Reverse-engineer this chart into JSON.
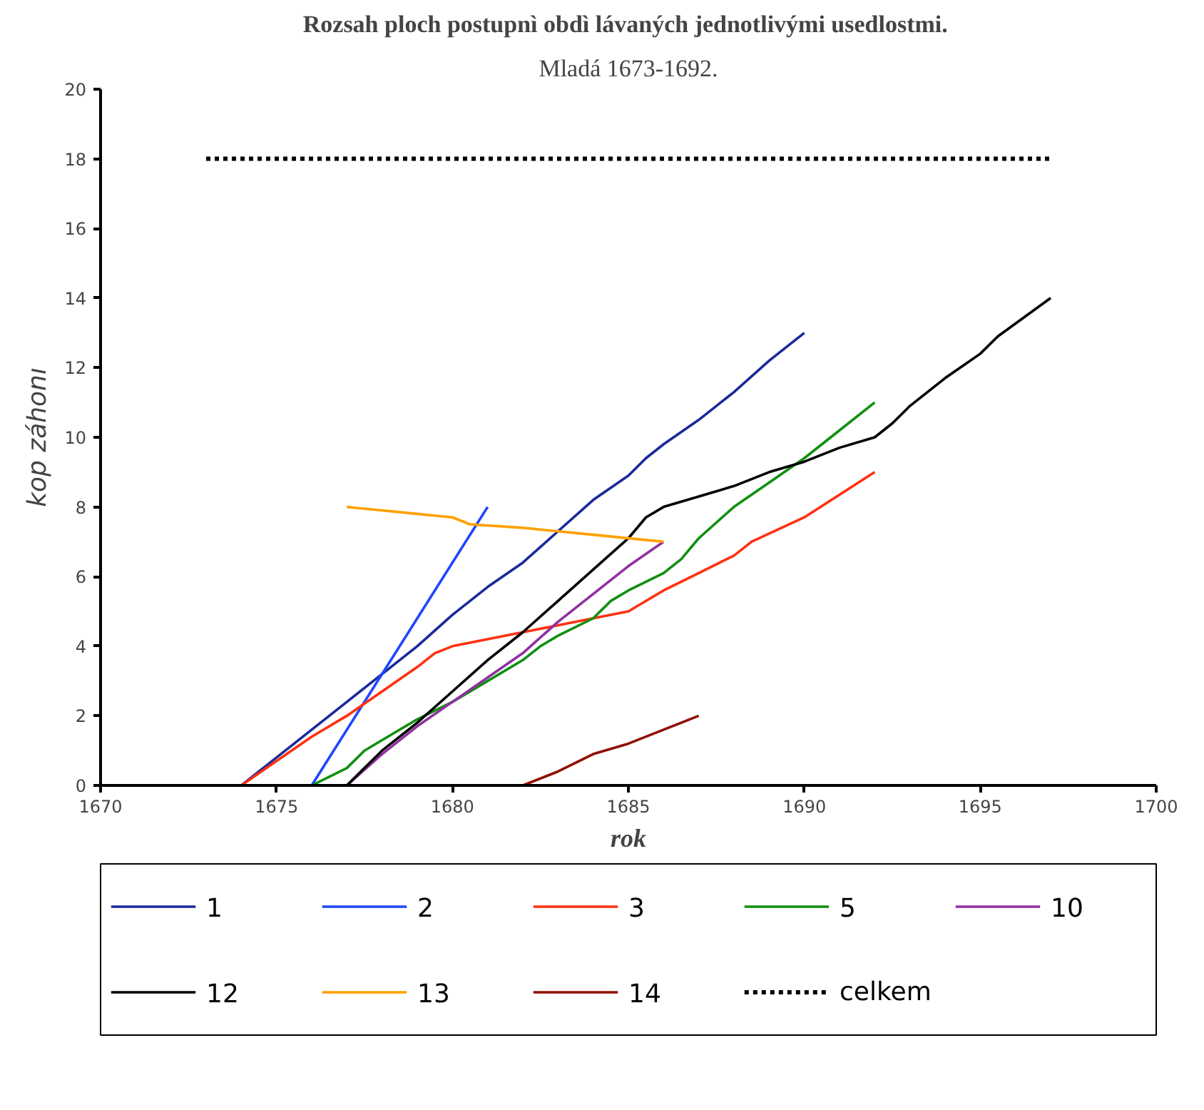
{
  "chart_data": {
    "type": "line",
    "title": "Rozsah ploch postupnì  obdì lávaných jednotlivými usedlostmi.",
    "subtitle": "Mladá 1673-1692.",
    "xlabel": "rok",
    "ylabel": "kop záhonı",
    "xlim": [
      1670,
      1700
    ],
    "xticks": [
      1670,
      1675,
      1680,
      1685,
      1690,
      1695,
      1700
    ],
    "ylim": [
      0,
      20
    ],
    "yticks": [
      0,
      2,
      4,
      6,
      8,
      10,
      12,
      14,
      16,
      18,
      20
    ],
    "grid": false,
    "legend": "bottom",
    "marker": "none",
    "line_style": "solid",
    "series": [
      {
        "name": "1",
        "color": "#1a2a9a",
        "x": [
          1674,
          1675,
          1676,
          1677,
          1678,
          1679,
          1680,
          1681,
          1682,
          1683,
          1684,
          1685,
          1685.5,
          1686,
          1687,
          1688,
          1689,
          1690
        ],
        "values": [
          0,
          0.8,
          1.6,
          2.4,
          3.2,
          4.0,
          4.9,
          5.7,
          6.4,
          7.3,
          8.2,
          8.9,
          9.4,
          9.8,
          10.5,
          11.3,
          12.2,
          13
        ]
      },
      {
        "name": "2",
        "color": "#1e46ff",
        "x": [
          1676,
          1681
        ],
        "values": [
          0,
          8
        ]
      },
      {
        "name": "3",
        "color": "#ff3010",
        "x": [
          1674,
          1675,
          1676,
          1677,
          1678,
          1679,
          1679.5,
          1680,
          1681,
          1682,
          1683,
          1684,
          1685,
          1686,
          1687,
          1688,
          1688.5,
          1690,
          1692
        ],
        "values": [
          0,
          0.7,
          1.4,
          2.0,
          2.7,
          3.4,
          3.8,
          4.0,
          4.2,
          4.4,
          4.6,
          4.8,
          5.0,
          5.6,
          6.1,
          6.6,
          7.0,
          7.7,
          9
        ]
      },
      {
        "name": "5",
        "color": "#109010",
        "x": [
          1676,
          1677,
          1677.5,
          1678,
          1679,
          1680,
          1681,
          1682,
          1682.5,
          1683,
          1684,
          1684.5,
          1685,
          1686,
          1686.5,
          1687,
          1688,
          1689,
          1690,
          1691,
          1692
        ],
        "values": [
          0,
          0.5,
          1.0,
          1.3,
          1.9,
          2.4,
          3.0,
          3.6,
          4.0,
          4.3,
          4.8,
          5.3,
          5.6,
          6.1,
          6.5,
          7.1,
          8.0,
          8.7,
          9.4,
          10.2,
          11
        ]
      },
      {
        "name": "10",
        "color": "#9030a0",
        "x": [
          1677,
          1678,
          1679,
          1680,
          1681,
          1682,
          1683,
          1684,
          1685,
          1686
        ],
        "values": [
          0,
          0.9,
          1.7,
          2.4,
          3.1,
          3.8,
          4.7,
          5.5,
          6.3,
          7
        ]
      },
      {
        "name": "12",
        "color": "#000000",
        "x": [
          1677,
          1678,
          1679,
          1680,
          1681,
          1682,
          1683,
          1684,
          1685,
          1685.5,
          1686,
          1687,
          1688,
          1689,
          1690,
          1691,
          1692,
          1692.5,
          1693,
          1694,
          1695,
          1695.5,
          1697
        ],
        "values": [
          0,
          1.0,
          1.8,
          2.7,
          3.6,
          4.4,
          5.3,
          6.2,
          7.1,
          7.7,
          8.0,
          8.3,
          8.6,
          9.0,
          9.3,
          9.7,
          10.0,
          10.4,
          10.9,
          11.7,
          12.4,
          12.9,
          14
        ]
      },
      {
        "name": "13",
        "color": "#ffa000",
        "x": [
          1677,
          1679,
          1680,
          1680.5,
          1682,
          1684,
          1686
        ],
        "values": [
          8,
          7.8,
          7.7,
          7.5,
          7.4,
          7.2,
          7
        ]
      },
      {
        "name": "14",
        "color": "#901000",
        "x": [
          1682,
          1683,
          1684,
          1685,
          1686,
          1687
        ],
        "values": [
          0,
          0.4,
          0.9,
          1.2,
          1.6,
          2
        ]
      },
      {
        "name": "celkem",
        "color": "#000000",
        "line_style": "dotted",
        "x": [
          1673,
          1697
        ],
        "values": [
          18,
          18
        ]
      }
    ]
  }
}
